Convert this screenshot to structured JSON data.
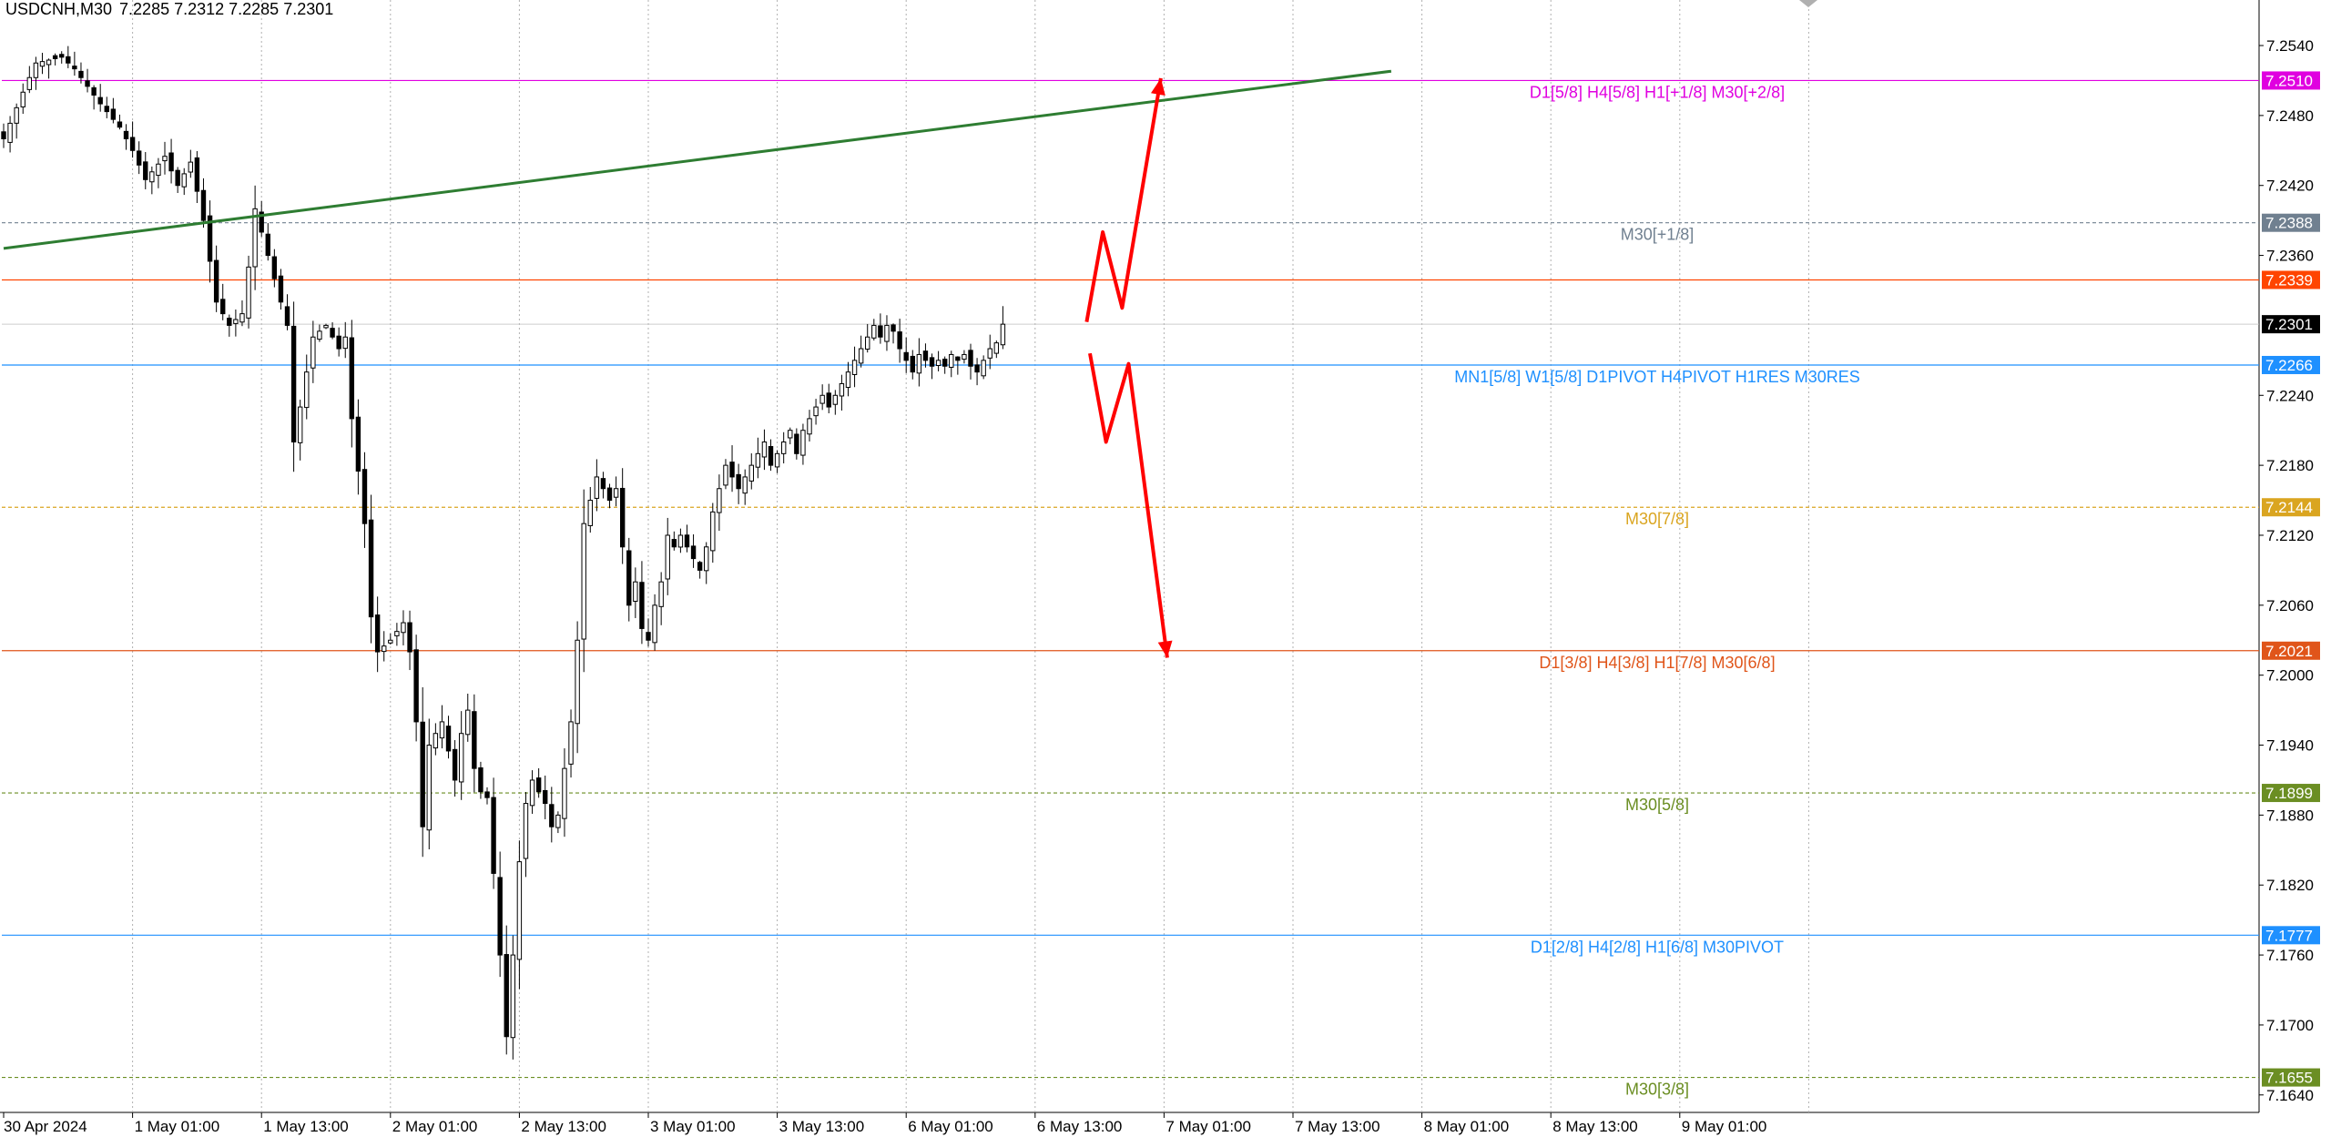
{
  "header": {
    "symbol": "USDCNH,M30",
    "ohlc": "7.2285 7.2312 7.2285 7.2301"
  },
  "chart_data": {
    "type": "candlestick",
    "symbol": "USDCNH",
    "timeframe": "M30",
    "ylim": [
      7.1625,
      7.2565
    ],
    "yticks": [
      "7.2540",
      "7.2480",
      "7.2420",
      "7.2360",
      "7.2240",
      "7.2180",
      "7.2120",
      "7.2060",
      "7.2000",
      "7.1940",
      "7.1880",
      "7.1820",
      "7.1760",
      "7.1700",
      "7.1640"
    ],
    "xticks": [
      "30 Apr 2024",
      "1 May 01:00",
      "1 May 13:00",
      "2 May 01:00",
      "2 May 13:00",
      "3 May 01:00",
      "3 May 13:00",
      "6 May 01:00",
      "6 May 13:00",
      "7 May 01:00",
      "7 May 13:00",
      "8 May 01:00",
      "8 May 13:00",
      "9 May 01:00"
    ],
    "grid": true,
    "levels": [
      {
        "price": 7.251,
        "label": "7.2510",
        "text": "D1[5/8] H4[5/8] H1[+1/8] M30[+2/8]",
        "color": "#e000e0",
        "style": "solid"
      },
      {
        "price": 7.2388,
        "label": "7.2388",
        "text": "M30[+1/8]",
        "color": "#708090",
        "style": "dash"
      },
      {
        "price": 7.2339,
        "label": "7.2339",
        "text": "",
        "color": "#ff4500",
        "style": "solid"
      },
      {
        "price": 7.2301,
        "label": "7.2301",
        "text": "",
        "color": "#c0c0c0",
        "style": "solid",
        "current": true
      },
      {
        "price": 7.2266,
        "label": "7.2266",
        "text": "MN1[5/8] W1[5/8] D1PIVOT H4PIVOT H1RES M30RES",
        "color": "#1e90ff",
        "style": "solid"
      },
      {
        "price": 7.2144,
        "label": "7.2144",
        "text": "M30[7/8]",
        "color": "#daa520",
        "style": "dash"
      },
      {
        "price": 7.2021,
        "label": "7.2021",
        "text": "D1[3/8] H4[3/8] H1[7/8] M30[6/8]",
        "color": "#e0551a",
        "style": "solid"
      },
      {
        "price": 7.1899,
        "label": "7.1899",
        "text": "M30[5/8]",
        "color": "#6b8e23",
        "style": "dash"
      },
      {
        "price": 7.1777,
        "label": "7.1777",
        "text": "D1[2/8] H4[2/8] H1[6/8] M30PIVOT",
        "color": "#1e90ff",
        "style": "solid"
      },
      {
        "price": 7.1655,
        "label": "7.1655",
        "text": "M30[3/8]",
        "color": "#6b8e23",
        "style": "dash"
      }
    ],
    "trendline": {
      "color": "#2e7d32",
      "start": {
        "bar": 0,
        "price": 7.2366
      },
      "end": {
        "bar": 211,
        "price": 7.2518
      }
    },
    "arrow_paths": [
      {
        "color": "#ff0000",
        "points": [
          {
            "bar": 168,
            "price": 7.2303
          },
          {
            "bar": 170.5,
            "price": 7.238
          },
          {
            "bar": 173.5,
            "price": 7.2315
          },
          {
            "bar": 179.5,
            "price": 7.2512
          }
        ]
      },
      {
        "color": "#ff0000",
        "points": [
          {
            "bar": 168.5,
            "price": 7.2276
          },
          {
            "bar": 171,
            "price": 7.22
          },
          {
            "bar": 174.5,
            "price": 7.2267
          },
          {
            "bar": 180.5,
            "price": 7.2015
          }
        ]
      }
    ],
    "close_anchors": [
      [
        0,
        7.246
      ],
      [
        3,
        7.25
      ],
      [
        5,
        7.2525
      ],
      [
        9,
        7.253
      ],
      [
        11,
        7.252
      ],
      [
        15,
        7.249
      ],
      [
        18,
        7.247
      ],
      [
        20,
        7.245
      ],
      [
        22,
        7.2425
      ],
      [
        25,
        7.2445
      ],
      [
        27,
        7.242
      ],
      [
        29,
        7.244
      ],
      [
        31,
        7.239
      ],
      [
        33,
        7.232
      ],
      [
        35,
        7.23
      ],
      [
        37,
        7.231
      ],
      [
        38,
        7.235
      ],
      [
        39,
        7.24
      ],
      [
        41,
        7.236
      ],
      [
        43,
        7.232
      ],
      [
        44,
        7.23
      ],
      [
        45,
        7.22
      ],
      [
        46,
        7.223
      ],
      [
        47,
        7.226
      ],
      [
        48,
        7.229
      ],
      [
        50,
        7.23
      ],
      [
        52,
        7.228
      ],
      [
        53,
        7.229
      ],
      [
        54,
        7.222
      ],
      [
        56,
        7.213
      ],
      [
        57,
        7.205
      ],
      [
        58,
        7.202
      ],
      [
        60,
        7.203
      ],
      [
        62,
        7.2045
      ],
      [
        63,
        7.202
      ],
      [
        64,
        7.196
      ],
      [
        65,
        7.187
      ],
      [
        66,
        7.194
      ],
      [
        68,
        7.196
      ],
      [
        70,
        7.191
      ],
      [
        71,
        7.195
      ],
      [
        72,
        7.197
      ],
      [
        73,
        7.192
      ],
      [
        74,
        7.19
      ],
      [
        75,
        7.1895
      ],
      [
        76,
        7.183
      ],
      [
        77,
        7.176
      ],
      [
        78,
        7.169
      ],
      [
        79,
        7.176
      ],
      [
        80,
        7.184
      ],
      [
        81,
        7.189
      ],
      [
        82,
        7.191
      ],
      [
        83,
        7.19
      ],
      [
        84,
        7.189
      ],
      [
        85,
        7.187
      ],
      [
        86,
        7.188
      ],
      [
        87,
        7.192
      ],
      [
        88,
        7.196
      ],
      [
        89,
        7.203
      ],
      [
        90,
        7.213
      ],
      [
        91,
        7.215
      ],
      [
        92,
        7.217
      ],
      [
        94,
        7.215
      ],
      [
        95,
        7.216
      ],
      [
        96,
        7.211
      ],
      [
        97,
        7.206
      ],
      [
        98,
        7.208
      ],
      [
        99,
        7.204
      ],
      [
        100,
        7.203
      ],
      [
        101,
        7.206
      ],
      [
        102,
        7.208
      ],
      [
        103,
        7.212
      ],
      [
        104,
        7.211
      ],
      [
        105,
        7.212
      ],
      [
        106,
        7.211
      ],
      [
        107,
        7.21
      ],
      [
        108,
        7.209
      ],
      [
        109,
        7.211
      ],
      [
        110,
        7.214
      ],
      [
        111,
        7.216
      ],
      [
        112,
        7.218
      ],
      [
        113,
        7.217
      ],
      [
        114,
        7.216
      ],
      [
        115,
        7.217
      ],
      [
        116,
        7.218
      ],
      [
        117,
        7.219
      ],
      [
        118,
        7.22
      ],
      [
        119,
        7.218
      ],
      [
        120,
        7.219
      ],
      [
        121,
        7.22
      ],
      [
        122,
        7.221
      ],
      [
        123,
        7.219
      ],
      [
        124,
        7.221
      ],
      [
        125,
        7.222
      ],
      [
        126,
        7.223
      ],
      [
        127,
        7.224
      ],
      [
        128,
        7.223
      ],
      [
        129,
        7.224
      ],
      [
        130,
        7.225
      ],
      [
        131,
        7.226
      ],
      [
        132,
        7.227
      ],
      [
        133,
        7.228
      ],
      [
        134,
        7.229
      ],
      [
        135,
        7.23
      ],
      [
        136,
        7.229
      ],
      [
        137,
        7.23
      ],
      [
        138,
        7.2295
      ],
      [
        139,
        7.228
      ],
      [
        140,
        7.227
      ],
      [
        141,
        7.226
      ],
      [
        142,
        7.2275
      ],
      [
        143,
        7.227
      ],
      [
        144,
        7.2265
      ],
      [
        145,
        7.227
      ],
      [
        146,
        7.2265
      ],
      [
        147,
        7.2275
      ],
      [
        148,
        7.227
      ],
      [
        149,
        7.2275
      ],
      [
        150,
        7.2265
      ],
      [
        151,
        7.226
      ],
      [
        152,
        7.227
      ],
      [
        153,
        7.228
      ],
      [
        154,
        7.2285
      ],
      [
        155,
        7.2301
      ]
    ]
  }
}
